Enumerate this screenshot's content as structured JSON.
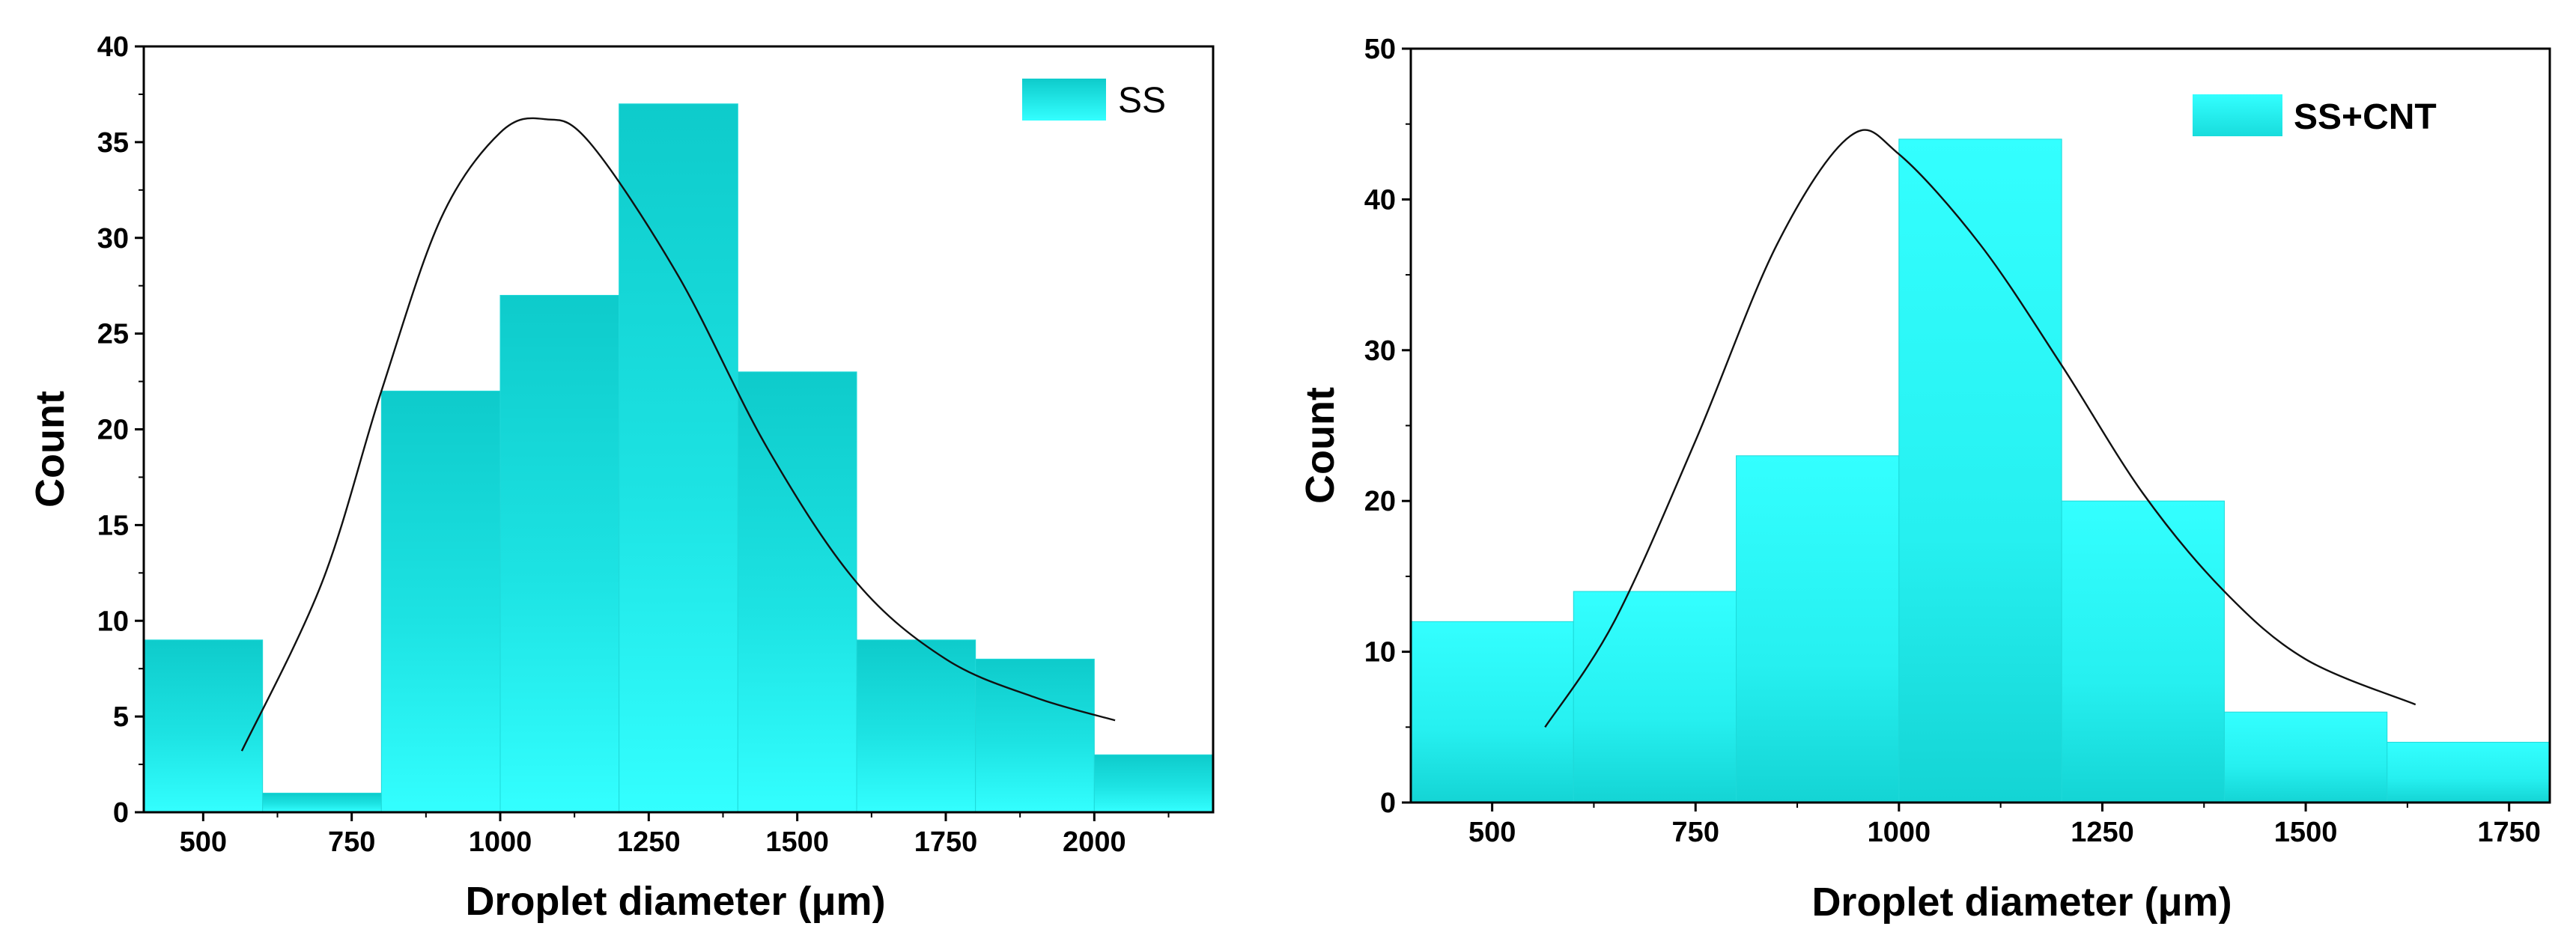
{
  "chart_data": [
    {
      "type": "bar",
      "subtype": "histogram",
      "legend": "SS",
      "legend_position": "top-right",
      "xlabel": "Droplet diameter (μm)",
      "ylabel": "Count",
      "xlim": [
        400,
        2200
      ],
      "ylim": [
        0,
        40
      ],
      "xticks": [
        500,
        750,
        1000,
        1250,
        1500,
        1750,
        2000
      ],
      "xtick_labels": [
        "500",
        "750",
        "1000",
        "1250",
        "1500",
        "1750",
        "2000"
      ],
      "yticks": [
        0,
        5,
        10,
        15,
        20,
        25,
        30,
        35,
        40
      ],
      "ytick_labels": [
        "0",
        "5",
        "10",
        "15",
        "20",
        "25",
        "30",
        "35",
        "40"
      ],
      "bins": [
        {
          "start": 400,
          "end": 600,
          "count": 9
        },
        {
          "start": 600,
          "end": 800,
          "count": 1
        },
        {
          "start": 800,
          "end": 1000,
          "count": 22
        },
        {
          "start": 1000,
          "end": 1200,
          "count": 27
        },
        {
          "start": 1200,
          "end": 1400,
          "count": 37
        },
        {
          "start": 1400,
          "end": 1600,
          "count": 23
        },
        {
          "start": 1600,
          "end": 1800,
          "count": 9
        },
        {
          "start": 1800,
          "end": 2000,
          "count": 8
        },
        {
          "start": 2000,
          "end": 2200,
          "count": 3
        }
      ],
      "fit_curve": {
        "type": "lognormal",
        "peak_x": 1075,
        "peak_y": 36.2,
        "x_range": [
          565,
          2035
        ],
        "points": [
          [
            565,
            3.2
          ],
          [
            700,
            12
          ],
          [
            800,
            22
          ],
          [
            900,
            31
          ],
          [
            1000,
            35.5
          ],
          [
            1075,
            36.2
          ],
          [
            1150,
            35
          ],
          [
            1300,
            28
          ],
          [
            1450,
            19
          ],
          [
            1600,
            12
          ],
          [
            1750,
            8
          ],
          [
            1900,
            6
          ],
          [
            2035,
            4.8
          ]
        ]
      },
      "colors": {
        "fill": "#2ef5f5",
        "fill_dark": "#0ecbcb",
        "curve": "#111111"
      }
    },
    {
      "type": "bar",
      "subtype": "histogram",
      "legend": "SS+CNT",
      "legend_position": "top-right",
      "xlabel": "Droplet diameter (μm)",
      "ylabel": "Count",
      "xlim": [
        400,
        1800
      ],
      "ylim": [
        0,
        50
      ],
      "xticks": [
        500,
        750,
        1000,
        1250,
        1500,
        1750
      ],
      "xtick_labels": [
        "500",
        "750",
        "1000",
        "1250",
        "1500",
        "1750"
      ],
      "yticks": [
        0,
        10,
        20,
        30,
        40,
        50
      ],
      "ytick_labels": [
        "0",
        "10",
        "20",
        "30",
        "40",
        "50"
      ],
      "bins": [
        {
          "start": 400,
          "end": 600,
          "count": 12
        },
        {
          "start": 600,
          "end": 800,
          "count": 14
        },
        {
          "start": 800,
          "end": 1000,
          "count": 23
        },
        {
          "start": 1000,
          "end": 1200,
          "count": 44
        },
        {
          "start": 1200,
          "end": 1400,
          "count": 20
        },
        {
          "start": 1400,
          "end": 1600,
          "count": 6
        },
        {
          "start": 1600,
          "end": 1800,
          "count": 4
        }
      ],
      "fit_curve": {
        "type": "lognormal",
        "peak_x": 940,
        "peak_y": 44.2,
        "x_range": [
          565,
          1635
        ],
        "points": [
          [
            565,
            5
          ],
          [
            650,
            12
          ],
          [
            750,
            24
          ],
          [
            850,
            37
          ],
          [
            940,
            44.2
          ],
          [
            1000,
            43
          ],
          [
            1100,
            37
          ],
          [
            1200,
            29
          ],
          [
            1300,
            20.5
          ],
          [
            1400,
            14
          ],
          [
            1500,
            9.5
          ],
          [
            1635,
            6.5
          ]
        ]
      },
      "colors": {
        "fill": "#2ef5f5",
        "fill_dark": "#0ecbcb",
        "curve": "#111111"
      }
    }
  ]
}
